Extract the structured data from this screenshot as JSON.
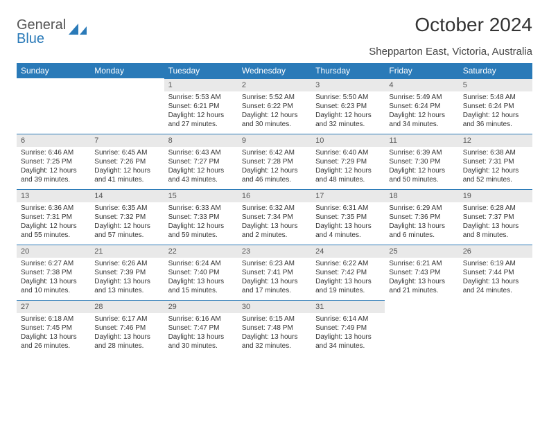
{
  "logo": {
    "part1": "General",
    "part2": "Blue"
  },
  "title": "October 2024",
  "location": "Shepparton East, Victoria, Australia",
  "colors": {
    "header_bg": "#2a7ab8",
    "header_text": "#ffffff",
    "daynum_bg": "#e9e9e9",
    "daynum_border": "#2a7ab8",
    "text": "#333333",
    "background": "#ffffff"
  },
  "day_headers": [
    "Sunday",
    "Monday",
    "Tuesday",
    "Wednesday",
    "Thursday",
    "Friday",
    "Saturday"
  ],
  "weeks": [
    [
      {
        "empty": true
      },
      {
        "empty": true
      },
      {
        "num": "1",
        "sunrise": "Sunrise: 5:53 AM",
        "sunset": "Sunset: 6:21 PM",
        "daylight": "Daylight: 12 hours and 27 minutes."
      },
      {
        "num": "2",
        "sunrise": "Sunrise: 5:52 AM",
        "sunset": "Sunset: 6:22 PM",
        "daylight": "Daylight: 12 hours and 30 minutes."
      },
      {
        "num": "3",
        "sunrise": "Sunrise: 5:50 AM",
        "sunset": "Sunset: 6:23 PM",
        "daylight": "Daylight: 12 hours and 32 minutes."
      },
      {
        "num": "4",
        "sunrise": "Sunrise: 5:49 AM",
        "sunset": "Sunset: 6:24 PM",
        "daylight": "Daylight: 12 hours and 34 minutes."
      },
      {
        "num": "5",
        "sunrise": "Sunrise: 5:48 AM",
        "sunset": "Sunset: 6:24 PM",
        "daylight": "Daylight: 12 hours and 36 minutes."
      }
    ],
    [
      {
        "num": "6",
        "sunrise": "Sunrise: 6:46 AM",
        "sunset": "Sunset: 7:25 PM",
        "daylight": "Daylight: 12 hours and 39 minutes."
      },
      {
        "num": "7",
        "sunrise": "Sunrise: 6:45 AM",
        "sunset": "Sunset: 7:26 PM",
        "daylight": "Daylight: 12 hours and 41 minutes."
      },
      {
        "num": "8",
        "sunrise": "Sunrise: 6:43 AM",
        "sunset": "Sunset: 7:27 PM",
        "daylight": "Daylight: 12 hours and 43 minutes."
      },
      {
        "num": "9",
        "sunrise": "Sunrise: 6:42 AM",
        "sunset": "Sunset: 7:28 PM",
        "daylight": "Daylight: 12 hours and 46 minutes."
      },
      {
        "num": "10",
        "sunrise": "Sunrise: 6:40 AM",
        "sunset": "Sunset: 7:29 PM",
        "daylight": "Daylight: 12 hours and 48 minutes."
      },
      {
        "num": "11",
        "sunrise": "Sunrise: 6:39 AM",
        "sunset": "Sunset: 7:30 PM",
        "daylight": "Daylight: 12 hours and 50 minutes."
      },
      {
        "num": "12",
        "sunrise": "Sunrise: 6:38 AM",
        "sunset": "Sunset: 7:31 PM",
        "daylight": "Daylight: 12 hours and 52 minutes."
      }
    ],
    [
      {
        "num": "13",
        "sunrise": "Sunrise: 6:36 AM",
        "sunset": "Sunset: 7:31 PM",
        "daylight": "Daylight: 12 hours and 55 minutes."
      },
      {
        "num": "14",
        "sunrise": "Sunrise: 6:35 AM",
        "sunset": "Sunset: 7:32 PM",
        "daylight": "Daylight: 12 hours and 57 minutes."
      },
      {
        "num": "15",
        "sunrise": "Sunrise: 6:33 AM",
        "sunset": "Sunset: 7:33 PM",
        "daylight": "Daylight: 12 hours and 59 minutes."
      },
      {
        "num": "16",
        "sunrise": "Sunrise: 6:32 AM",
        "sunset": "Sunset: 7:34 PM",
        "daylight": "Daylight: 13 hours and 2 minutes."
      },
      {
        "num": "17",
        "sunrise": "Sunrise: 6:31 AM",
        "sunset": "Sunset: 7:35 PM",
        "daylight": "Daylight: 13 hours and 4 minutes."
      },
      {
        "num": "18",
        "sunrise": "Sunrise: 6:29 AM",
        "sunset": "Sunset: 7:36 PM",
        "daylight": "Daylight: 13 hours and 6 minutes."
      },
      {
        "num": "19",
        "sunrise": "Sunrise: 6:28 AM",
        "sunset": "Sunset: 7:37 PM",
        "daylight": "Daylight: 13 hours and 8 minutes."
      }
    ],
    [
      {
        "num": "20",
        "sunrise": "Sunrise: 6:27 AM",
        "sunset": "Sunset: 7:38 PM",
        "daylight": "Daylight: 13 hours and 10 minutes."
      },
      {
        "num": "21",
        "sunrise": "Sunrise: 6:26 AM",
        "sunset": "Sunset: 7:39 PM",
        "daylight": "Daylight: 13 hours and 13 minutes."
      },
      {
        "num": "22",
        "sunrise": "Sunrise: 6:24 AM",
        "sunset": "Sunset: 7:40 PM",
        "daylight": "Daylight: 13 hours and 15 minutes."
      },
      {
        "num": "23",
        "sunrise": "Sunrise: 6:23 AM",
        "sunset": "Sunset: 7:41 PM",
        "daylight": "Daylight: 13 hours and 17 minutes."
      },
      {
        "num": "24",
        "sunrise": "Sunrise: 6:22 AM",
        "sunset": "Sunset: 7:42 PM",
        "daylight": "Daylight: 13 hours and 19 minutes."
      },
      {
        "num": "25",
        "sunrise": "Sunrise: 6:21 AM",
        "sunset": "Sunset: 7:43 PM",
        "daylight": "Daylight: 13 hours and 21 minutes."
      },
      {
        "num": "26",
        "sunrise": "Sunrise: 6:19 AM",
        "sunset": "Sunset: 7:44 PM",
        "daylight": "Daylight: 13 hours and 24 minutes."
      }
    ],
    [
      {
        "num": "27",
        "sunrise": "Sunrise: 6:18 AM",
        "sunset": "Sunset: 7:45 PM",
        "daylight": "Daylight: 13 hours and 26 minutes."
      },
      {
        "num": "28",
        "sunrise": "Sunrise: 6:17 AM",
        "sunset": "Sunset: 7:46 PM",
        "daylight": "Daylight: 13 hours and 28 minutes."
      },
      {
        "num": "29",
        "sunrise": "Sunrise: 6:16 AM",
        "sunset": "Sunset: 7:47 PM",
        "daylight": "Daylight: 13 hours and 30 minutes."
      },
      {
        "num": "30",
        "sunrise": "Sunrise: 6:15 AM",
        "sunset": "Sunset: 7:48 PM",
        "daylight": "Daylight: 13 hours and 32 minutes."
      },
      {
        "num": "31",
        "sunrise": "Sunrise: 6:14 AM",
        "sunset": "Sunset: 7:49 PM",
        "daylight": "Daylight: 13 hours and 34 minutes."
      },
      {
        "empty": true
      },
      {
        "empty": true
      }
    ]
  ]
}
